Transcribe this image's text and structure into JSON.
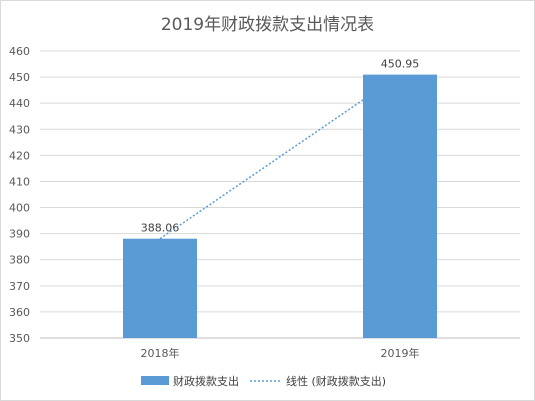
{
  "chart_data": {
    "type": "bar",
    "title": "2019年财政拨款支出情况表",
    "categories": [
      "2018年",
      "2019年"
    ],
    "series": [
      {
        "name": "财政拨款支出",
        "values": [
          388.06,
          450.95
        ],
        "color": "#5b9bd5"
      }
    ],
    "trendline": {
      "name": "线性 (财政拨款支出)",
      "style": "dotted",
      "color": "#5b9bd5"
    },
    "data_labels": [
      "388.06",
      "450.95"
    ],
    "ylim": [
      350,
      460
    ],
    "yticks": [
      350,
      360,
      370,
      380,
      390,
      400,
      410,
      420,
      430,
      440,
      450,
      460
    ],
    "grid": true,
    "legend_position": "bottom",
    "xlabel": "",
    "ylabel": ""
  }
}
